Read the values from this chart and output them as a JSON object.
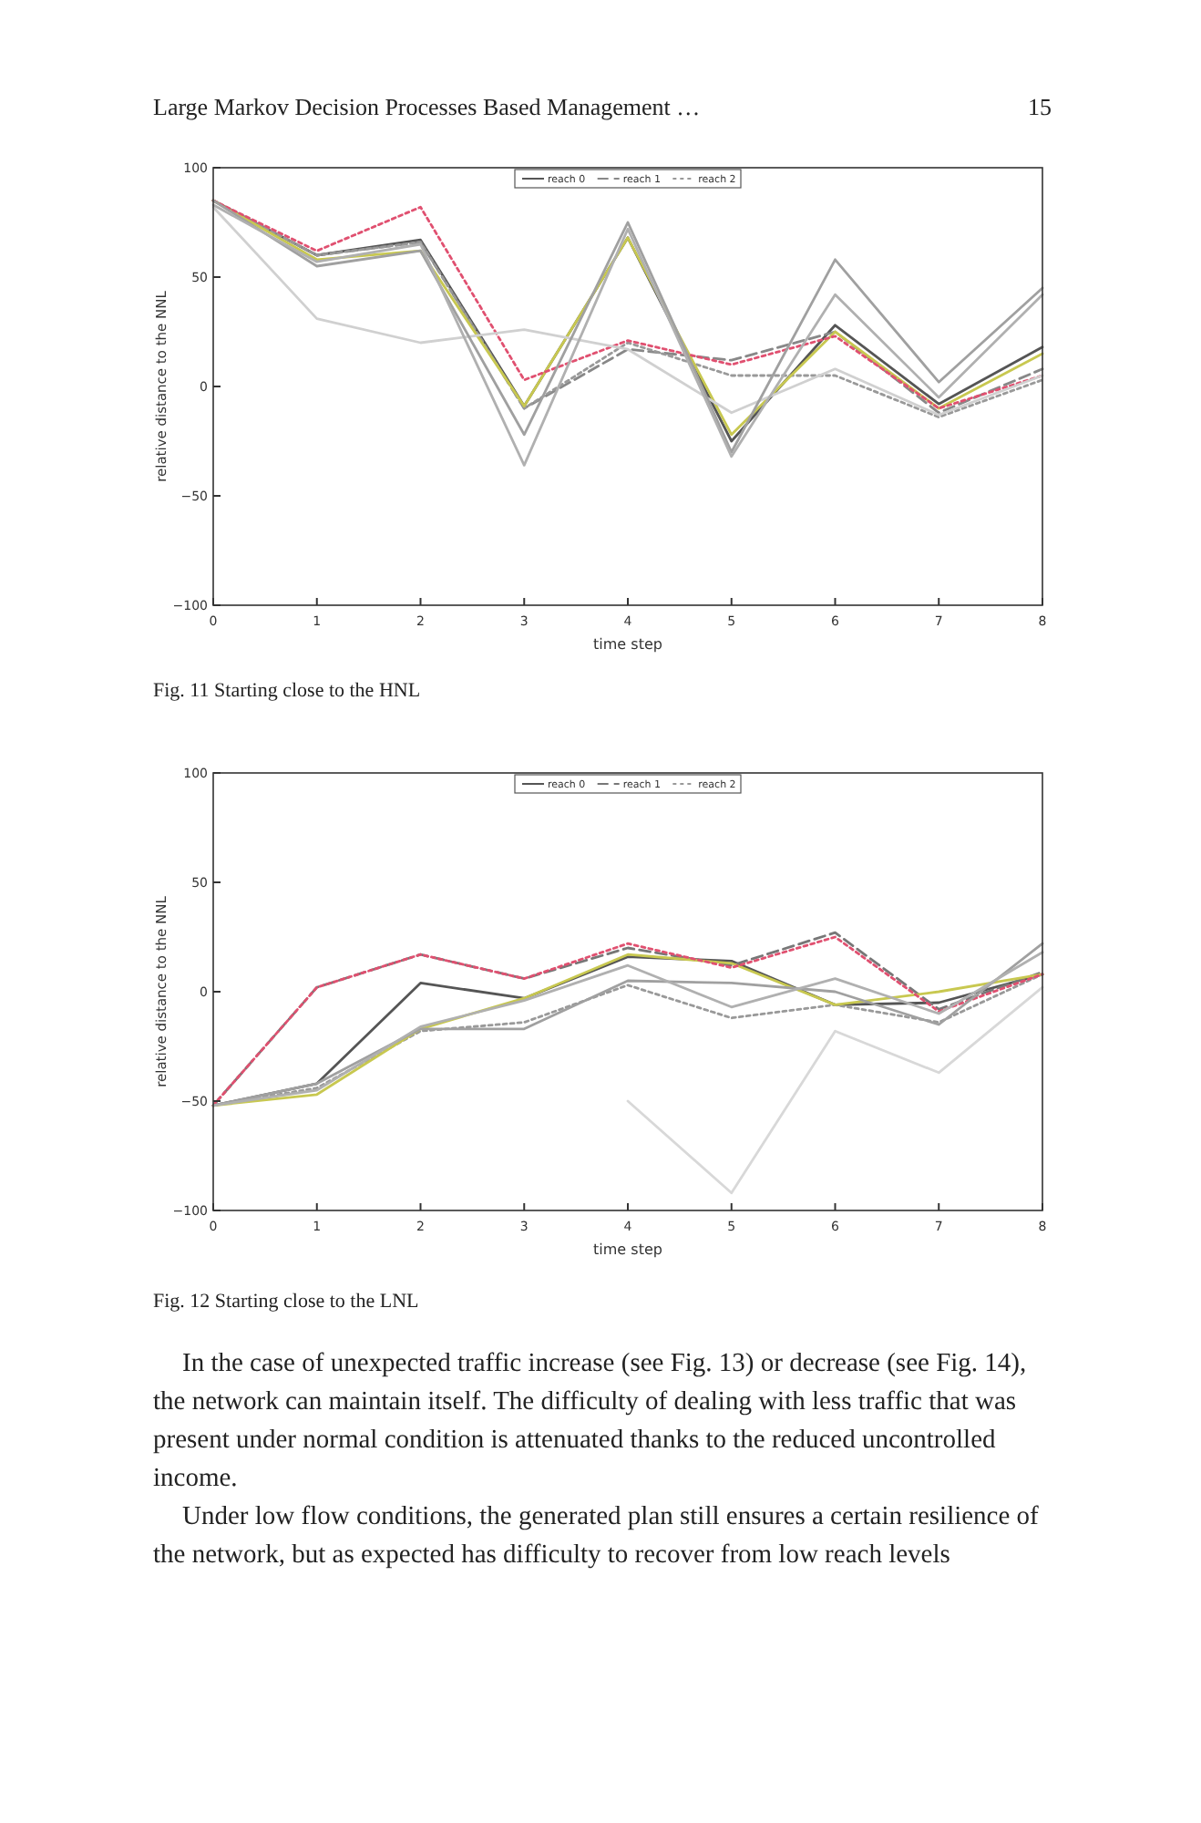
{
  "chart_data": [
    {
      "type": "line",
      "xlabel": "time step",
      "ylabel": "relative distance to the NNL",
      "x": [
        0,
        1,
        2,
        3,
        4,
        5,
        6,
        7,
        8
      ],
      "xlim": [
        0,
        8
      ],
      "xticks": [
        0,
        1,
        2,
        3,
        4,
        5,
        6,
        7,
        8
      ],
      "ylim": [
        -100,
        100
      ],
      "yticks": [
        -100,
        -50,
        0,
        50,
        100
      ],
      "grid": false,
      "legend": "top",
      "marker": "none",
      "series": [
        {
          "name": "reach 0",
          "color": "#555555",
          "line_style": "solid",
          "values": [
            85,
            60,
            67,
            -9,
            68,
            -25,
            28,
            -8,
            18
          ]
        },
        {
          "name": "reach 1",
          "color": "#888888",
          "line_style": "dashed",
          "values": [
            85,
            60,
            66,
            -10,
            17,
            12,
            25,
            -12,
            8
          ]
        },
        {
          "name": "reach 2",
          "color": "#999999",
          "line_style": "dotted",
          "values": [
            85,
            60,
            66,
            -10,
            20,
            5,
            5,
            -14,
            3
          ]
        },
        {
          "color": "#c8c850",
          "line_style": "solid",
          "values": [
            85,
            58,
            62,
            -9,
            68,
            -22,
            25,
            -10,
            15
          ]
        },
        {
          "color": "#e05070",
          "line_style": "dotted",
          "values": [
            85,
            62,
            82,
            3,
            21,
            10,
            23,
            -10,
            5
          ]
        },
        {
          "color": "#d0d0d0",
          "line_style": "solid",
          "values": [
            82,
            31,
            20,
            26,
            17,
            -12,
            8,
            -13,
            5
          ]
        },
        {
          "color": "#a0a0a0",
          "line_style": "solid",
          "values": [
            85,
            55,
            62,
            -22,
            75,
            -30,
            58,
            2,
            45
          ]
        },
        {
          "color": "#b0b0b0",
          "line_style": "solid",
          "values": [
            83,
            57,
            65,
            -36,
            72,
            -32,
            42,
            -5,
            42
          ]
        }
      ],
      "annotations": [
        "Large Markov Decision Processes Based Management …",
        "15",
        "Fig. 11 Starting close to the HNL"
      ]
    },
    {
      "type": "line",
      "xlabel": "time step",
      "ylabel": "relative distance to the NNL",
      "x": [
        0,
        1,
        2,
        3,
        4,
        5,
        6,
        7,
        8
      ],
      "xlim": [
        0,
        8
      ],
      "xticks": [
        0,
        1,
        2,
        3,
        4,
        5,
        6,
        7,
        8
      ],
      "ylim": [
        -100,
        100
      ],
      "yticks": [
        -100,
        -50,
        0,
        50,
        100
      ],
      "grid": false,
      "legend": "top",
      "marker": "none",
      "series": [
        {
          "name": "reach 0",
          "color": "#555555",
          "line_style": "solid",
          "values": [
            -52,
            -42,
            4,
            -3,
            16,
            14,
            -6,
            -5,
            8
          ]
        },
        {
          "name": "reach 1",
          "color": "#777777",
          "line_style": "dashed",
          "values": [
            -52,
            2,
            17,
            6,
            20,
            12,
            27,
            -8,
            9
          ]
        },
        {
          "name": "reach 2",
          "color": "#999999",
          "line_style": "dotted",
          "values": [
            -52,
            -44,
            -18,
            -14,
            3,
            -12,
            -6,
            -14,
            8
          ]
        },
        {
          "color": "#c8c850",
          "line_style": "solid",
          "values": [
            -52,
            -47,
            -17,
            -3,
            17,
            13,
            -6,
            0,
            8
          ]
        },
        {
          "color": "#e05070",
          "line_style": "dotted",
          "values": [
            -52,
            2,
            17,
            6,
            22,
            11,
            25,
            -9,
            8
          ]
        },
        {
          "color": "#a0a0a0",
          "line_style": "solid",
          "values": [
            -52,
            -42,
            -17,
            -17,
            5,
            4,
            0,
            -15,
            22
          ]
        },
        {
          "color": "#b0b0b0",
          "line_style": "solid",
          "values": [
            -52,
            -45,
            -16,
            -4,
            12,
            -7,
            6,
            -10,
            18
          ]
        },
        {
          "color": "#d8d8d8",
          "line_style": "solid",
          "values": [
            null,
            null,
            null,
            null,
            -50,
            -92,
            -18,
            -37,
            2
          ]
        }
      ],
      "annotations": [
        "Fig. 12 Starting close to the LNL",
        "In the case of unexpected traffic increase (see Fig. 13) or decrease (see Fig. 14), the network can maintain itself. The difficulty of dealing with less traffic that was present under normal condition is attenuated thanks to the reduced uncontrolled income.",
        "Under low flow conditions, the generated plan still ensures a certain resilience of the network, but as expected has difficulty to recover from low reach levels"
      ]
    }
  ]
}
